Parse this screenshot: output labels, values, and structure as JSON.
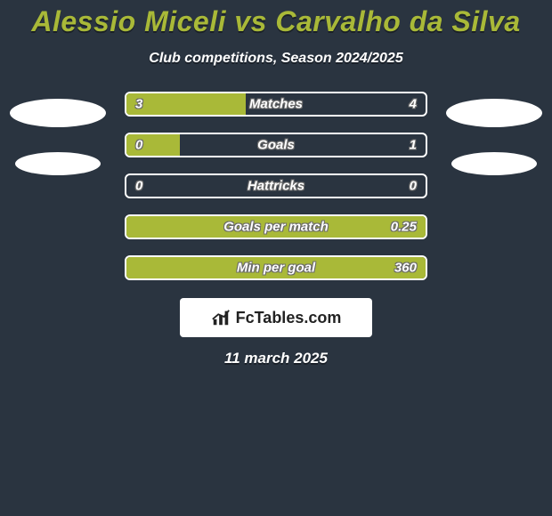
{
  "title": "Alessio Miceli vs Carvalho da Silva",
  "subtitle": "Club competitions, Season 2024/2025",
  "date": "11 march 2025",
  "logo_text": "FcTables.com",
  "colors": {
    "background": "#2a3440",
    "accent": "#a9b938",
    "bar_fill": "#a9b938",
    "bar_border": "#ffffff",
    "title_color": "#a9b938",
    "text_color": "#ffffff",
    "text_shadow": "#1a2028",
    "ellipse_fill": "#ffffff",
    "logo_bg": "#ffffff",
    "logo_fg": "#222222"
  },
  "bars": [
    {
      "label": "Matches",
      "left_val": "3",
      "right_val": "4",
      "fill_pct": 40,
      "fill_color": "#a9b938"
    },
    {
      "label": "Goals",
      "left_val": "0",
      "right_val": "1",
      "fill_pct": 18,
      "fill_color": "#a9b938"
    },
    {
      "label": "Hattricks",
      "left_val": "0",
      "right_val": "0",
      "fill_pct": 0,
      "fill_color": "#a9b938"
    },
    {
      "label": "Goals per match",
      "left_val": "",
      "right_val": "0.25",
      "fill_pct": 100,
      "fill_color": "#a9b938"
    },
    {
      "label": "Min per goal",
      "left_val": "",
      "right_val": "360",
      "fill_pct": 100,
      "fill_color": "#a9b938"
    }
  ],
  "ellipses": {
    "left": [
      {
        "size": "lg"
      },
      {
        "size": "sm"
      }
    ],
    "right": [
      {
        "size": "lg"
      },
      {
        "size": "sm"
      }
    ]
  }
}
